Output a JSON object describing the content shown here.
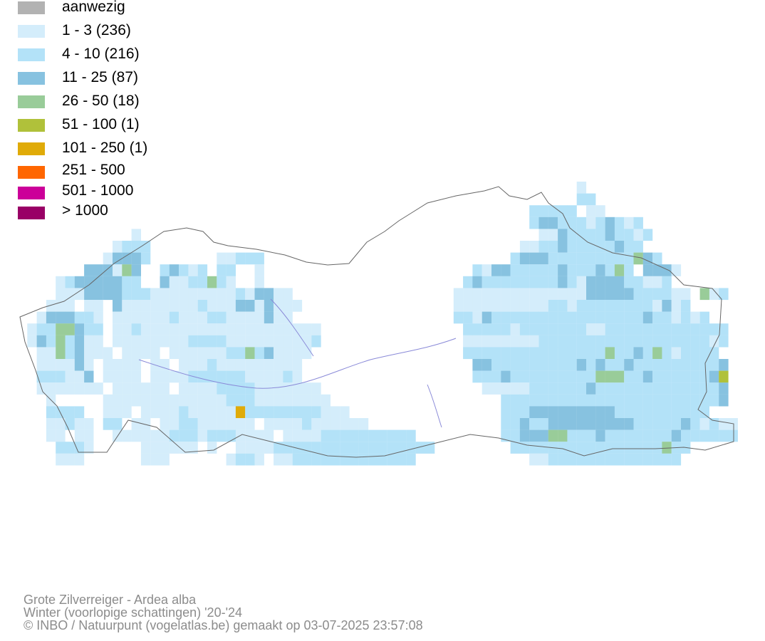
{
  "legend": {
    "items": [
      {
        "label": "aanwezig",
        "color": "#b2b2b2"
      },
      {
        "label": "1 - 3 (236)",
        "color": "#d4edfb"
      },
      {
        "label": "4 - 10 (216)",
        "color": "#b3e2f8"
      },
      {
        "label": "11 - 25 (87)",
        "color": "#87c2e0"
      },
      {
        "label": "26 - 50 (18)",
        "color": "#99cc99"
      },
      {
        "label": "51 - 100 (1)",
        "color": "#b0c13a"
      },
      {
        "label": "101 - 250 (1)",
        "color": "#e0ab08"
      },
      {
        "label": "251 - 500",
        "color": "#ff6600"
      },
      {
        "label": "501 - 1000",
        "color": "#cc0099"
      },
      {
        "label": "> 1000",
        "color": "#990066"
      }
    ]
  },
  "footer": {
    "species": "Grote Zilverreiger - Ardea alba",
    "period": "Winter (voorlopige schattingen) '20-'24",
    "credit": "© INBO / Natuurpunt (vogelatlas.be) gemaakt op 03-07-2025 23:57:08"
  },
  "map": {
    "border_color": "#666666",
    "river_color": "#8a8ad8"
  }
}
